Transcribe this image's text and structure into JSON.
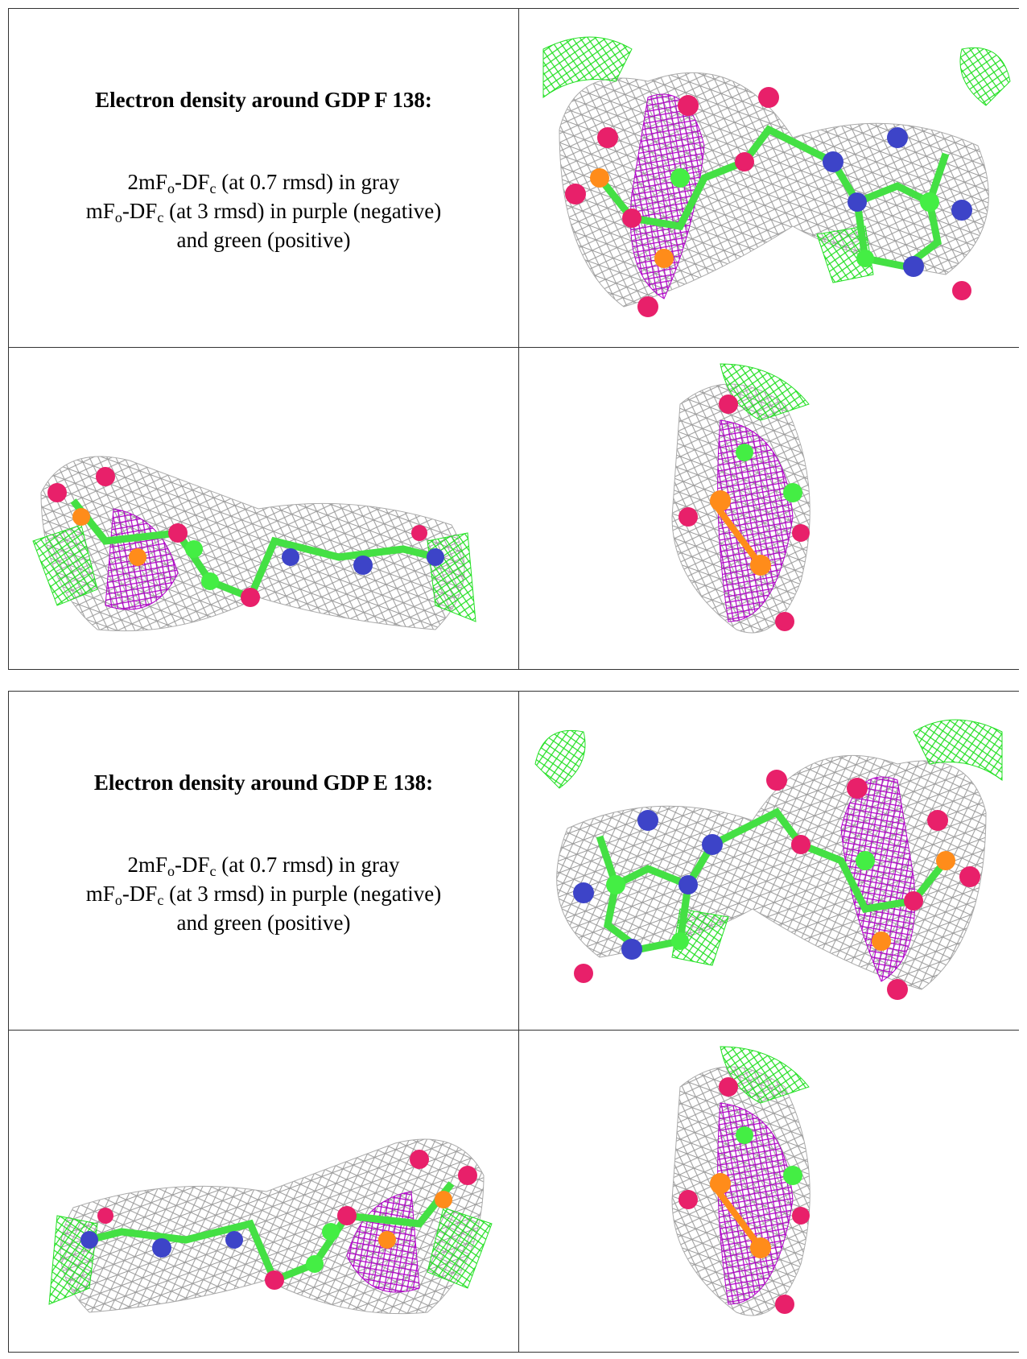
{
  "panels": [
    {
      "title": "Electron density around GDP F 138:",
      "lines": [
        [
          "2mF",
          "o",
          "-DF",
          "c",
          " (at 0.7 rmsd) in gray"
        ],
        [
          "mF",
          "o",
          "-DF",
          "c",
          " (at 3 rmsd) in purple (negative)"
        ],
        [
          "and green (positive)"
        ]
      ]
    },
    {
      "title": "Electron density around GDP E 138:",
      "lines": [
        [
          "2mF",
          "o",
          "-DF",
          "c",
          " (at 0.7 rmsd) in gray"
        ],
        [
          "mF",
          "o",
          "-DF",
          "c",
          " (at 3 rmsd) in purple (negative)"
        ],
        [
          "and green (positive)"
        ]
      ]
    }
  ]
}
